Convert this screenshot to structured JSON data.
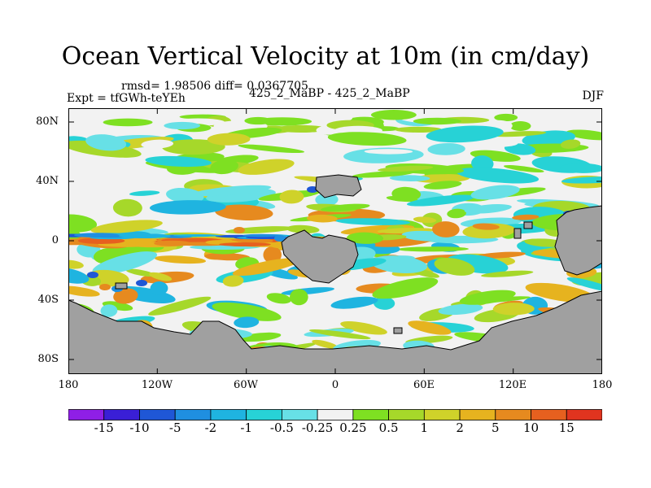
{
  "title": "Ocean Vertical Velocity at 10m (in cm/day)",
  "stats_line": "rmsd= 1.98506 diff= 0.0367705",
  "expt_label": "Expt = tfGWh-teYEh",
  "comparison_label": "425_2_MaBP - 425_2_MaBP",
  "season_label": "DJF",
  "lat_ticks": [
    "80N",
    "40N",
    "0",
    "40S",
    "80S"
  ],
  "lon_ticks": [
    "180",
    "120W",
    "60W",
    "0",
    "60E",
    "120E",
    "180"
  ],
  "colorbar": {
    "labels": [
      "-15",
      "-10",
      "-5",
      "-2",
      "-1",
      "-0.5",
      "-0.25",
      "0.25",
      "0.5",
      "1",
      "2",
      "5",
      "10",
      "15"
    ],
    "colors": [
      "#8f1fe6",
      "#3a1fd6",
      "#1f57d6",
      "#1f8fe0",
      "#1fb4e0",
      "#27d2d6",
      "#67e0e6",
      "#f2f2f2",
      "#7ee022",
      "#a6d82a",
      "#cfd22a",
      "#e6b31f",
      "#e68a1f",
      "#e6601f",
      "#e0341f"
    ]
  },
  "land_color": "#a0a0a0"
}
